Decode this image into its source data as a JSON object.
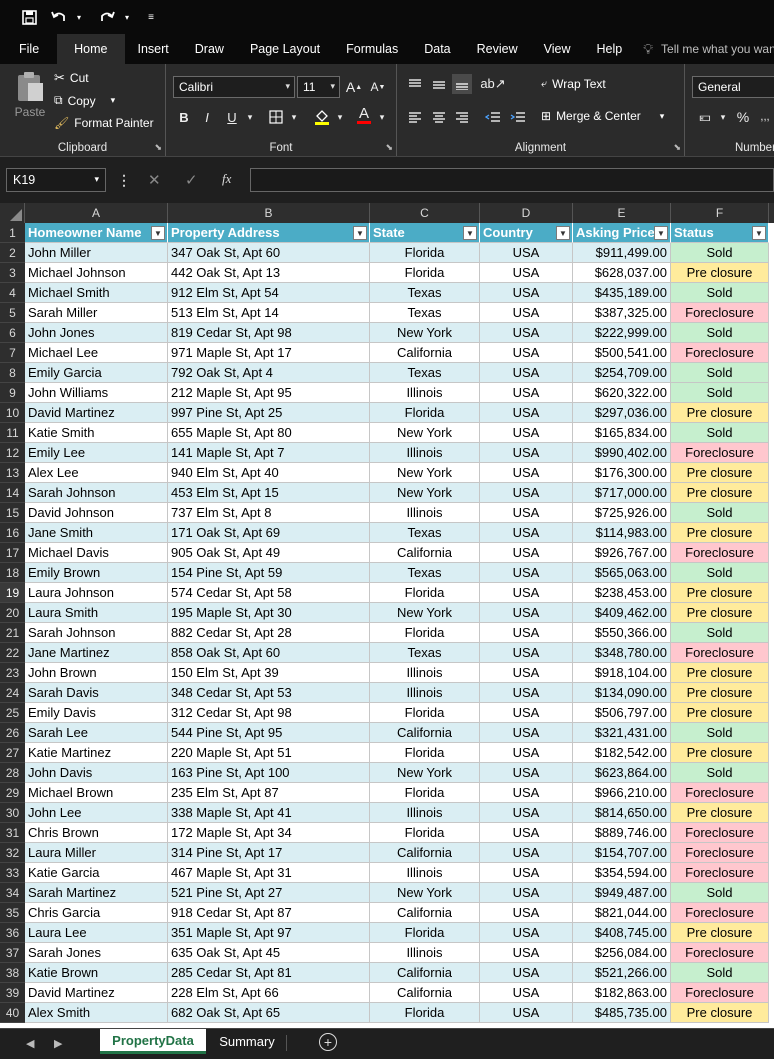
{
  "qat": {
    "save_icon": "save-icon",
    "undo_icon": "undo-icon",
    "redo_icon": "redo-icon",
    "customize_icon": "customize-qat-icon"
  },
  "tabs": [
    "File",
    "Home",
    "Insert",
    "Draw",
    "Page Layout",
    "Formulas",
    "Data",
    "Review",
    "View",
    "Help"
  ],
  "active_tab": "Home",
  "tell_me": "Tell me what you want to do",
  "ribbon": {
    "clipboard": {
      "label": "Clipboard",
      "paste": "Paste",
      "cut": "Cut",
      "copy": "Copy",
      "format_painter": "Format Painter"
    },
    "font": {
      "label": "Font",
      "font_name": "Calibri",
      "font_size": "11",
      "bold": "B",
      "italic": "I",
      "underline": "U",
      "grow": "A",
      "shrink": "A",
      "font_color": "A"
    },
    "alignment": {
      "label": "Alignment",
      "wrap_text": "Wrap Text",
      "merge_center": "Merge & Center"
    },
    "number": {
      "label": "Number",
      "format": "General",
      "percent": "%"
    }
  },
  "formula_bar": {
    "name_box": "K19",
    "fx": "fx",
    "value": ""
  },
  "columns": [
    "A",
    "B",
    "C",
    "D",
    "E",
    "F"
  ],
  "headers": [
    "Homeowner Name",
    "Property Address",
    "State",
    "Country",
    "Asking Price",
    "Status"
  ],
  "rows": [
    [
      "John Miller",
      "347 Oak St, Apt 60",
      "Florida",
      "USA",
      "$911,499.00",
      "Sold"
    ],
    [
      "Michael Johnson",
      "442 Oak St, Apt 13",
      "Florida",
      "USA",
      "$628,037.00",
      "Pre closure"
    ],
    [
      "Michael Smith",
      "912 Elm St, Apt 54",
      "Texas",
      "USA",
      "$435,189.00",
      "Sold"
    ],
    [
      "Sarah Miller",
      "513 Elm St, Apt 14",
      "Texas",
      "USA",
      "$387,325.00",
      "Foreclosure"
    ],
    [
      "John Jones",
      "819 Cedar St, Apt 98",
      "New York",
      "USA",
      "$222,999.00",
      "Sold"
    ],
    [
      "Michael Lee",
      "971 Maple St, Apt 17",
      "California",
      "USA",
      "$500,541.00",
      "Foreclosure"
    ],
    [
      "Emily Garcia",
      "792 Oak St, Apt 4",
      "Texas",
      "USA",
      "$254,709.00",
      "Sold"
    ],
    [
      "John Williams",
      "212 Maple St, Apt 95",
      "Illinois",
      "USA",
      "$620,322.00",
      "Sold"
    ],
    [
      "David Martinez",
      "997 Pine St, Apt 25",
      "Florida",
      "USA",
      "$297,036.00",
      "Pre closure"
    ],
    [
      "Katie Smith",
      "655 Maple St, Apt 80",
      "New York",
      "USA",
      "$165,834.00",
      "Sold"
    ],
    [
      "Emily Lee",
      "141 Maple St, Apt 7",
      "Illinois",
      "USA",
      "$990,402.00",
      "Foreclosure"
    ],
    [
      "Alex Lee",
      "940 Elm St, Apt 40",
      "New York",
      "USA",
      "$176,300.00",
      "Pre closure"
    ],
    [
      "Sarah Johnson",
      "453 Elm St, Apt 15",
      "New York",
      "USA",
      "$717,000.00",
      "Pre closure"
    ],
    [
      "David Johnson",
      "737 Elm St, Apt 8",
      "Illinois",
      "USA",
      "$725,926.00",
      "Sold"
    ],
    [
      "Jane Smith",
      "171 Oak St, Apt 69",
      "Texas",
      "USA",
      "$114,983.00",
      "Pre closure"
    ],
    [
      "Michael Davis",
      "905 Oak St, Apt 49",
      "California",
      "USA",
      "$926,767.00",
      "Foreclosure"
    ],
    [
      "Emily Brown",
      "154 Pine St, Apt 59",
      "Texas",
      "USA",
      "$565,063.00",
      "Sold"
    ],
    [
      "Laura Johnson",
      "574 Cedar St, Apt 58",
      "Florida",
      "USA",
      "$238,453.00",
      "Pre closure"
    ],
    [
      "Laura Smith",
      "195 Maple St, Apt 30",
      "New York",
      "USA",
      "$409,462.00",
      "Pre closure"
    ],
    [
      "Sarah Johnson",
      "882 Cedar St, Apt 28",
      "Florida",
      "USA",
      "$550,366.00",
      "Sold"
    ],
    [
      "Jane Martinez",
      "858 Oak St, Apt 60",
      "Texas",
      "USA",
      "$348,780.00",
      "Foreclosure"
    ],
    [
      "John Brown",
      "150 Elm St, Apt 39",
      "Illinois",
      "USA",
      "$918,104.00",
      "Pre closure"
    ],
    [
      "Sarah Davis",
      "348 Cedar St, Apt 53",
      "Illinois",
      "USA",
      "$134,090.00",
      "Pre closure"
    ],
    [
      "Emily Davis",
      "312 Cedar St, Apt 98",
      "Florida",
      "USA",
      "$506,797.00",
      "Pre closure"
    ],
    [
      "Sarah Lee",
      "544 Pine St, Apt 95",
      "California",
      "USA",
      "$321,431.00",
      "Sold"
    ],
    [
      "Katie Martinez",
      "220 Maple St, Apt 51",
      "Florida",
      "USA",
      "$182,542.00",
      "Pre closure"
    ],
    [
      "John Davis",
      "163 Pine St, Apt 100",
      "New York",
      "USA",
      "$623,864.00",
      "Sold"
    ],
    [
      "Michael Brown",
      "235 Elm St, Apt 87",
      "Florida",
      "USA",
      "$966,210.00",
      "Foreclosure"
    ],
    [
      "John Lee",
      "338 Maple St, Apt 41",
      "Illinois",
      "USA",
      "$814,650.00",
      "Pre closure"
    ],
    [
      "Chris Brown",
      "172 Maple St, Apt 34",
      "Florida",
      "USA",
      "$889,746.00",
      "Foreclosure"
    ],
    [
      "Laura Miller",
      "314 Pine St, Apt 17",
      "California",
      "USA",
      "$154,707.00",
      "Foreclosure"
    ],
    [
      "Katie Garcia",
      "467 Maple St, Apt 31",
      "Illinois",
      "USA",
      "$354,594.00",
      "Foreclosure"
    ],
    [
      "Sarah Martinez",
      "521 Pine St, Apt 27",
      "New York",
      "USA",
      "$949,487.00",
      "Sold"
    ],
    [
      "Chris Garcia",
      "918 Cedar St, Apt 87",
      "California",
      "USA",
      "$821,044.00",
      "Foreclosure"
    ],
    [
      "Laura Lee",
      "351 Maple St, Apt 97",
      "Florida",
      "USA",
      "$408,745.00",
      "Pre closure"
    ],
    [
      "Sarah Jones",
      "635 Oak St, Apt 45",
      "Illinois",
      "USA",
      "$256,084.00",
      "Foreclosure"
    ],
    [
      "Katie Brown",
      "285 Cedar St, Apt 81",
      "California",
      "USA",
      "$521,266.00",
      "Sold"
    ],
    [
      "David Martinez",
      "228 Elm St, Apt 66",
      "California",
      "USA",
      "$182,863.00",
      "Foreclosure"
    ],
    [
      "Alex Smith",
      "682 Oak St, Apt 65",
      "Florida",
      "USA",
      "$485,735.00",
      "Pre closure"
    ]
  ],
  "selected_row": 19,
  "status_colors": {
    "Sold": "#c6efce",
    "Pre closure": "#ffeb9c",
    "Foreclosure": "#ffc7ce"
  },
  "header_color": "#4bacc6",
  "band_color": "#daeef3",
  "sheet_tabs": [
    "PropertyData",
    "Summary"
  ],
  "active_sheet": "PropertyData"
}
